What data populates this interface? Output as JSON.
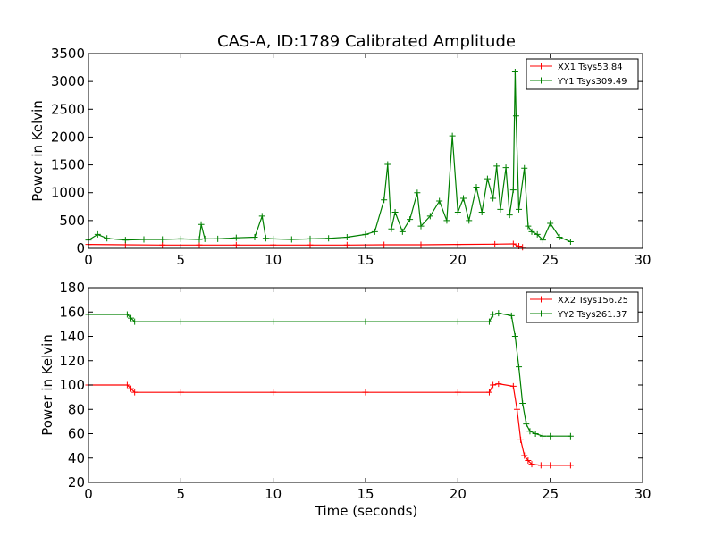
{
  "chart_data": [
    {
      "type": "line",
      "title": "CAS-A, ID:1789 Calibrated Amplitude",
      "xlabel": "",
      "ylabel": "Power in Kelvin",
      "xlim": [
        0,
        30
      ],
      "ylim": [
        0,
        3500
      ],
      "xticks": [
        "0",
        "5",
        "10",
        "15",
        "20",
        "25",
        "30"
      ],
      "yticks": [
        "0",
        "500",
        "1000",
        "1500",
        "2000",
        "2500",
        "3000",
        "3500"
      ],
      "legend_position": "top-right",
      "series": [
        {
          "name": "XX1 Tsys53.84",
          "color": "#ff0000",
          "x": [
            0,
            2,
            4,
            6,
            8,
            10,
            12,
            14,
            16,
            18,
            20,
            22,
            23,
            23.3,
            23.5
          ],
          "y": [
            70,
            65,
            60,
            60,
            60,
            60,
            60,
            60,
            65,
            65,
            70,
            75,
            80,
            40,
            20
          ]
        },
        {
          "name": "YY1 Tsys309.49",
          "color": "#008000",
          "x": [
            0,
            0.5,
            1,
            2,
            3,
            4,
            5,
            6,
            6.1,
            6.3,
            7,
            8,
            9,
            9.4,
            9.6,
            10,
            11,
            12,
            13,
            14,
            15,
            15.5,
            16,
            16.2,
            16.4,
            16.6,
            17,
            17.4,
            17.8,
            18,
            18.5,
            19,
            19.4,
            19.7,
            20,
            20.3,
            20.6,
            21,
            21.3,
            21.6,
            21.9,
            22.1,
            22.3,
            22.6,
            22.8,
            23.0,
            23.1,
            23.15,
            23.3,
            23.6,
            23.8,
            24,
            24.3,
            24.6,
            25,
            25.5,
            26.1
          ],
          "y": [
            150,
            250,
            180,
            150,
            160,
            160,
            170,
            160,
            430,
            170,
            170,
            190,
            200,
            580,
            180,
            170,
            160,
            170,
            180,
            200,
            250,
            300,
            870,
            1510,
            350,
            650,
            300,
            520,
            1000,
            400,
            580,
            850,
            500,
            2020,
            650,
            900,
            500,
            1100,
            650,
            1250,
            900,
            1480,
            700,
            1450,
            600,
            1050,
            3170,
            2380,
            700,
            1440,
            400,
            300,
            250,
            150,
            450,
            200,
            120
          ]
        }
      ]
    },
    {
      "type": "line",
      "title": "",
      "xlabel": "Time (seconds)",
      "ylabel": "Power in Kelvin",
      "xlim": [
        0,
        30
      ],
      "ylim": [
        20,
        180
      ],
      "xticks": [
        "0",
        "5",
        "10",
        "15",
        "20",
        "25",
        "30"
      ],
      "yticks": [
        "20",
        "40",
        "60",
        "80",
        "100",
        "120",
        "140",
        "160",
        "180"
      ],
      "legend_position": "top-right",
      "series": [
        {
          "name": "XX2 Tsys156.25",
          "color": "#ff0000",
          "x": [
            0,
            2.1,
            2.3,
            2.5,
            5,
            10,
            15,
            20,
            21.7,
            21.9,
            22.2,
            23.0,
            23.2,
            23.4,
            23.6,
            23.8,
            24.0,
            24.5,
            25,
            26.1
          ],
          "y": [
            100,
            100,
            97,
            94,
            94,
            94,
            94,
            94,
            94,
            100,
            101,
            99,
            80,
            55,
            42,
            38,
            35,
            34,
            34,
            34
          ]
        },
        {
          "name": "YY2 Tsys261.37",
          "color": "#008000",
          "x": [
            0,
            2.1,
            2.3,
            2.5,
            5,
            10,
            15,
            20,
            21.7,
            21.9,
            22.2,
            22.9,
            23.1,
            23.3,
            23.5,
            23.7,
            23.9,
            24.2,
            24.6,
            25,
            26.1
          ],
          "y": [
            158,
            158,
            155,
            152,
            152,
            152,
            152,
            152,
            152,
            158,
            159,
            157,
            140,
            115,
            85,
            68,
            62,
            60,
            58,
            58,
            58
          ]
        }
      ]
    }
  ]
}
